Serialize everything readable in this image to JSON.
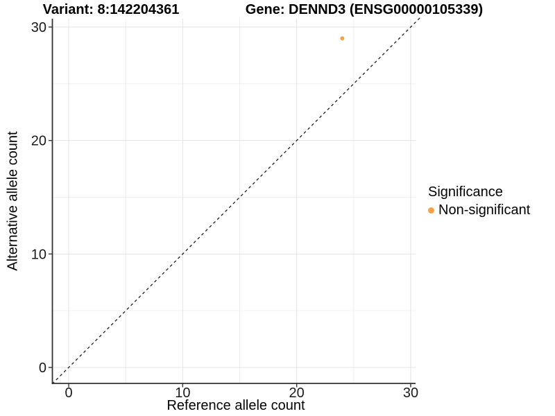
{
  "titles": {
    "left": "Variant: 8:142204361",
    "right": "Gene: DENND3 (ENSG00000105339)"
  },
  "chart_data": {
    "type": "scatter",
    "title": "Variant: 8:142204361    Gene: DENND3 (ENSG00000105339)",
    "xlabel": "Reference allele count",
    "ylabel": "Alternative allele count",
    "xlim": [
      -1.5,
      30.8
    ],
    "ylim": [
      -1.5,
      30.8
    ],
    "xticks": [
      0,
      10,
      20,
      30
    ],
    "yticks": [
      0,
      10,
      20,
      30
    ],
    "minor_gridlines_x": [
      5,
      15,
      25
    ],
    "minor_gridlines_y": [
      5,
      15,
      25
    ],
    "grid": true,
    "reference_line": {
      "equation": "y = x",
      "style": "dashed",
      "color": "#1a1a1a"
    },
    "series": [
      {
        "name": "Non-significant",
        "color": "#F9A242",
        "points": [
          {
            "x": 24,
            "y": 29
          }
        ]
      }
    ],
    "legend": {
      "title": "Significance",
      "position": "right",
      "entries": [
        {
          "label": "Non-significant",
          "color": "#F9A242"
        }
      ]
    }
  },
  "colors": {
    "background": "#FFFFFF",
    "axis_line": "#303030",
    "major_gridline": "#E3E3E3",
    "minor_gridline": "#EFEFEF",
    "tick": "#333333",
    "point": "#F9A242"
  }
}
